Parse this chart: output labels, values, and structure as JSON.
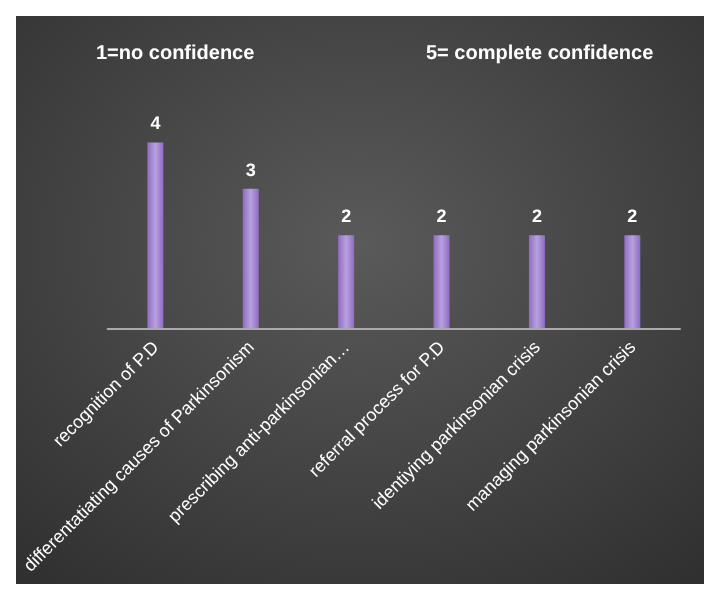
{
  "chart_data": {
    "type": "bar",
    "annotations": [
      "1=no confidence",
      "5= complete confidence"
    ],
    "categories": [
      "recognition of P.D",
      "differentatiating causes of Parkinsonism",
      "prescribing anti-parkinsonian…",
      "referral process for P.D",
      "identiying parkinsonian crisis",
      "managing parkinsonian crisis"
    ],
    "values": [
      4,
      3,
      2,
      2,
      2,
      2
    ],
    "color": "#8e6cc0",
    "data_labels": true
  }
}
